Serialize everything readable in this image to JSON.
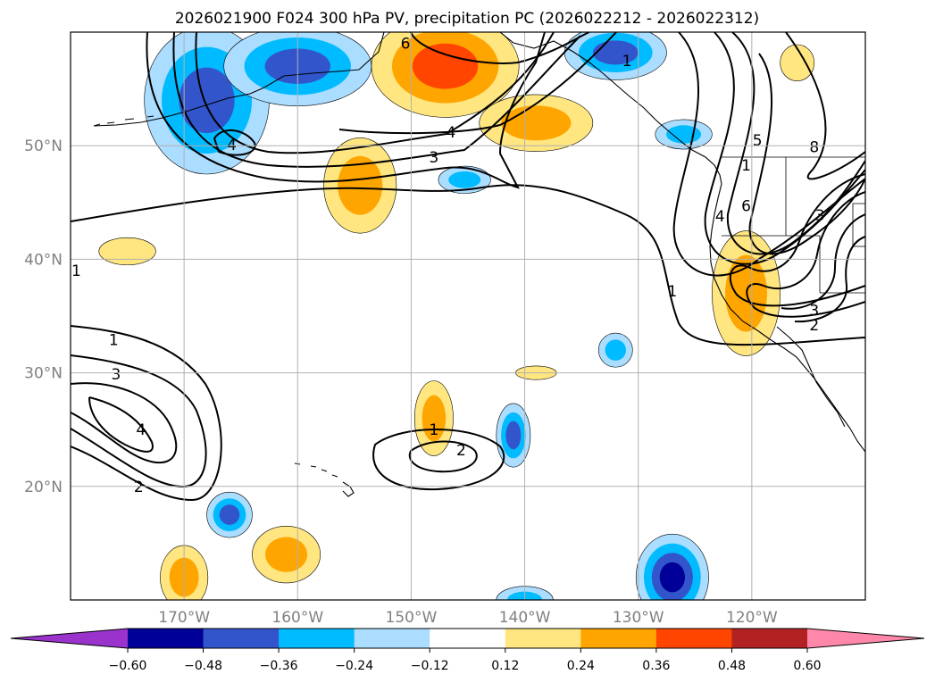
{
  "chart_data": {
    "type": "map",
    "title": "2026021900 F024 300 hPa PV, precipitation PC (2026022212 - 2026022312)",
    "lon_range": [
      -180,
      -110
    ],
    "lat_range": [
      10,
      60
    ],
    "lon_ticks": [
      {
        "value": -170,
        "label": "170°W"
      },
      {
        "value": -160,
        "label": "160°W"
      },
      {
        "value": -150,
        "label": "150°W"
      },
      {
        "value": -140,
        "label": "140°W"
      },
      {
        "value": -130,
        "label": "130°W"
      },
      {
        "value": -120,
        "label": "120°W"
      }
    ],
    "lat_ticks": [
      {
        "value": 50,
        "label": "50°N"
      },
      {
        "value": 40,
        "label": "40°N"
      },
      {
        "value": 30,
        "label": "30°N"
      },
      {
        "value": 20,
        "label": "20°N"
      }
    ],
    "grid": true,
    "colorbar": {
      "orientation": "horizontal",
      "extend": "both",
      "boundaries": [
        -0.6,
        -0.48,
        -0.36,
        -0.24,
        -0.12,
        0.12,
        0.24,
        0.36,
        0.48,
        0.6
      ],
      "tick_labels": [
        "−0.60",
        "−0.48",
        "−0.36",
        "−0.24",
        "−0.12",
        "0.12",
        "0.24",
        "0.36",
        "0.48",
        "0.60"
      ],
      "colors": [
        "#9933cc",
        "#000099",
        "#3355cc",
        "#00bbff",
        "#aaddff",
        "#ffffff",
        "#ffe680",
        "#ffa500",
        "#ff4500",
        "#b22222",
        "#ff88aa"
      ]
    },
    "pv_contour_labels": [
      {
        "text": "6",
        "lon": -150.5,
        "lat": 59.0
      },
      {
        "text": "4",
        "lon": -146.5,
        "lat": 51.2
      },
      {
        "text": "3",
        "lon": -148.0,
        "lat": 49.0
      },
      {
        "text": "4",
        "lon": -165.8,
        "lat": 50.1
      },
      {
        "text": "1",
        "lon": -131.0,
        "lat": 57.5
      },
      {
        "text": "5",
        "lon": -119.5,
        "lat": 50.5
      },
      {
        "text": "1",
        "lon": -120.5,
        "lat": 48.3
      },
      {
        "text": "6",
        "lon": -120.5,
        "lat": 44.7
      },
      {
        "text": "4",
        "lon": -122.8,
        "lat": 43.8
      },
      {
        "text": "8",
        "lon": -114.5,
        "lat": 49.9
      },
      {
        "text": "3",
        "lon": -114.0,
        "lat": 43.9
      },
      {
        "text": "1",
        "lon": -127.0,
        "lat": 37.2
      },
      {
        "text": "3",
        "lon": -114.5,
        "lat": 35.5
      },
      {
        "text": "2",
        "lon": -114.5,
        "lat": 34.2
      },
      {
        "text": "1",
        "lon": -176.2,
        "lat": 32.9
      },
      {
        "text": "3",
        "lon": -176.0,
        "lat": 29.9
      },
      {
        "text": "4",
        "lon": -173.8,
        "lat": 25.0
      },
      {
        "text": "2",
        "lon": -174.0,
        "lat": 20.0
      },
      {
        "text": "1",
        "lon": -148.0,
        "lat": 25.0
      },
      {
        "text": "2",
        "lon": -145.6,
        "lat": 23.2
      },
      {
        "text": "1",
        "lon": -179.5,
        "lat": 39.0
      }
    ],
    "pc_anomaly_areas": [
      {
        "lon": -147.0,
        "lat": 57.0,
        "rx": 6.5,
        "ry": 4.5,
        "value": 0.52
      },
      {
        "lon": -139.0,
        "lat": 52.0,
        "rx": 5.0,
        "ry": 2.5,
        "value": 0.4
      },
      {
        "lon": -154.5,
        "lat": 46.5,
        "rx": 3.2,
        "ry": 4.2,
        "value": 0.4
      },
      {
        "lon": -120.5,
        "lat": 37.0,
        "rx": 3.0,
        "ry": 5.5,
        "value": 0.4
      },
      {
        "lon": -116.0,
        "lat": 57.3,
        "rx": 1.5,
        "ry": 1.6,
        "value": 0.28
      },
      {
        "lon": -175.0,
        "lat": 40.7,
        "rx": 2.5,
        "ry": 1.2,
        "value": 0.28
      },
      {
        "lon": -148.0,
        "lat": 26.0,
        "rx": 1.7,
        "ry": 3.3,
        "value": 0.4
      },
      {
        "lon": -139.0,
        "lat": 30.0,
        "rx": 1.8,
        "ry": 0.6,
        "value": 0.28
      },
      {
        "lon": -170.0,
        "lat": 12.0,
        "rx": 2.1,
        "ry": 2.8,
        "value": 0.4
      },
      {
        "lon": -161.0,
        "lat": 14.0,
        "rx": 3.0,
        "ry": 2.5,
        "value": 0.4
      },
      {
        "lon": -168.0,
        "lat": 54.0,
        "rx": 5.5,
        "ry": 6.5,
        "value": -0.42
      },
      {
        "lon": -160.0,
        "lat": 57.0,
        "rx": 6.5,
        "ry": 3.5,
        "value": -0.42
      },
      {
        "lon": -132.0,
        "lat": 58.2,
        "rx": 4.5,
        "ry": 2.4,
        "value": -0.42
      },
      {
        "lon": -126.0,
        "lat": 51.0,
        "rx": 2.5,
        "ry": 1.3,
        "value": -0.3
      },
      {
        "lon": -145.3,
        "lat": 47.0,
        "rx": 2.3,
        "ry": 1.2,
        "value": -0.3
      },
      {
        "lon": -132.0,
        "lat": 32.0,
        "rx": 1.5,
        "ry": 1.5,
        "value": -0.3
      },
      {
        "lon": -141.0,
        "lat": 24.5,
        "rx": 1.5,
        "ry": 2.8,
        "value": -0.42
      },
      {
        "lon": -166.0,
        "lat": 17.5,
        "rx": 2.0,
        "ry": 2.0,
        "value": -0.42
      },
      {
        "lon": -127.0,
        "lat": 12.0,
        "rx": 3.2,
        "ry": 3.8,
        "value": -0.55
      },
      {
        "lon": -140.0,
        "lat": 10.0,
        "rx": 2.5,
        "ry": 1.2,
        "value": -0.3
      }
    ]
  }
}
